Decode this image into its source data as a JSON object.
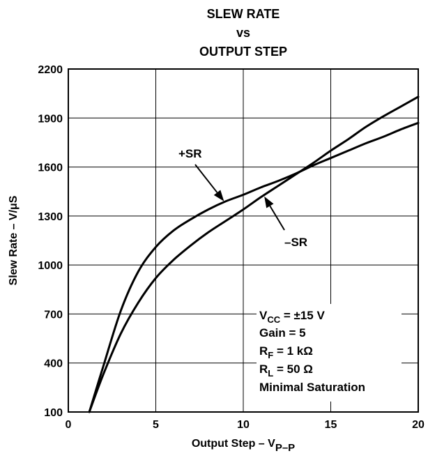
{
  "chart_data": {
    "type": "line",
    "title_lines": [
      "SLEW RATE",
      "vs",
      "OUTPUT STEP"
    ],
    "xlabel": {
      "main": "Output Step – V",
      "sub": "P–P"
    },
    "ylabel": "Slew Rate – V/μS",
    "xlim": [
      0,
      20
    ],
    "ylim": [
      100,
      2200
    ],
    "x_ticks": [
      0,
      5,
      10,
      15,
      20
    ],
    "y_ticks": [
      100,
      400,
      700,
      1000,
      1300,
      1600,
      1900,
      2200
    ],
    "grid": true,
    "series": [
      {
        "name": "+SR",
        "x": [
          1.2,
          2.0,
          3.0,
          4.0,
          5.0,
          6.0,
          7.0,
          8.0,
          9.0,
          10.0,
          11.0,
          12.0,
          13.0,
          14.0,
          15.0,
          16.0,
          17.0,
          18.0,
          19.0,
          20.0
        ],
        "y": [
          100,
          380,
          720,
          960,
          1110,
          1210,
          1280,
          1340,
          1390,
          1430,
          1475,
          1515,
          1560,
          1610,
          1655,
          1700,
          1745,
          1785,
          1830,
          1870
        ]
      },
      {
        "name": "–SR",
        "x": [
          1.2,
          2.0,
          3.0,
          4.0,
          5.0,
          6.0,
          7.0,
          8.0,
          9.0,
          10.0,
          11.0,
          12.0,
          13.0,
          14.0,
          15.0,
          16.0,
          17.0,
          18.0,
          19.0,
          20.0
        ],
        "y": [
          100,
          330,
          580,
          770,
          920,
          1030,
          1120,
          1200,
          1270,
          1340,
          1415,
          1485,
          1555,
          1625,
          1700,
          1770,
          1845,
          1910,
          1970,
          2030
        ]
      }
    ],
    "annotations": [
      {
        "text": "+SR",
        "arrow_to": [
          8.9,
          1390
        ]
      },
      {
        "text": "–SR",
        "arrow_to": [
          11.2,
          1420
        ]
      }
    ],
    "conditions": [
      {
        "main": "V",
        "sub": "CC",
        "rest": " = ±15 V"
      },
      {
        "main": "Gain = 5",
        "sub": "",
        "rest": ""
      },
      {
        "main": "R",
        "sub": "F",
        "rest": " = 1 kΩ"
      },
      {
        "main": "R",
        "sub": "L",
        "rest": " = 50 Ω"
      },
      {
        "main": "Minimal Saturation",
        "sub": "",
        "rest": ""
      }
    ]
  }
}
